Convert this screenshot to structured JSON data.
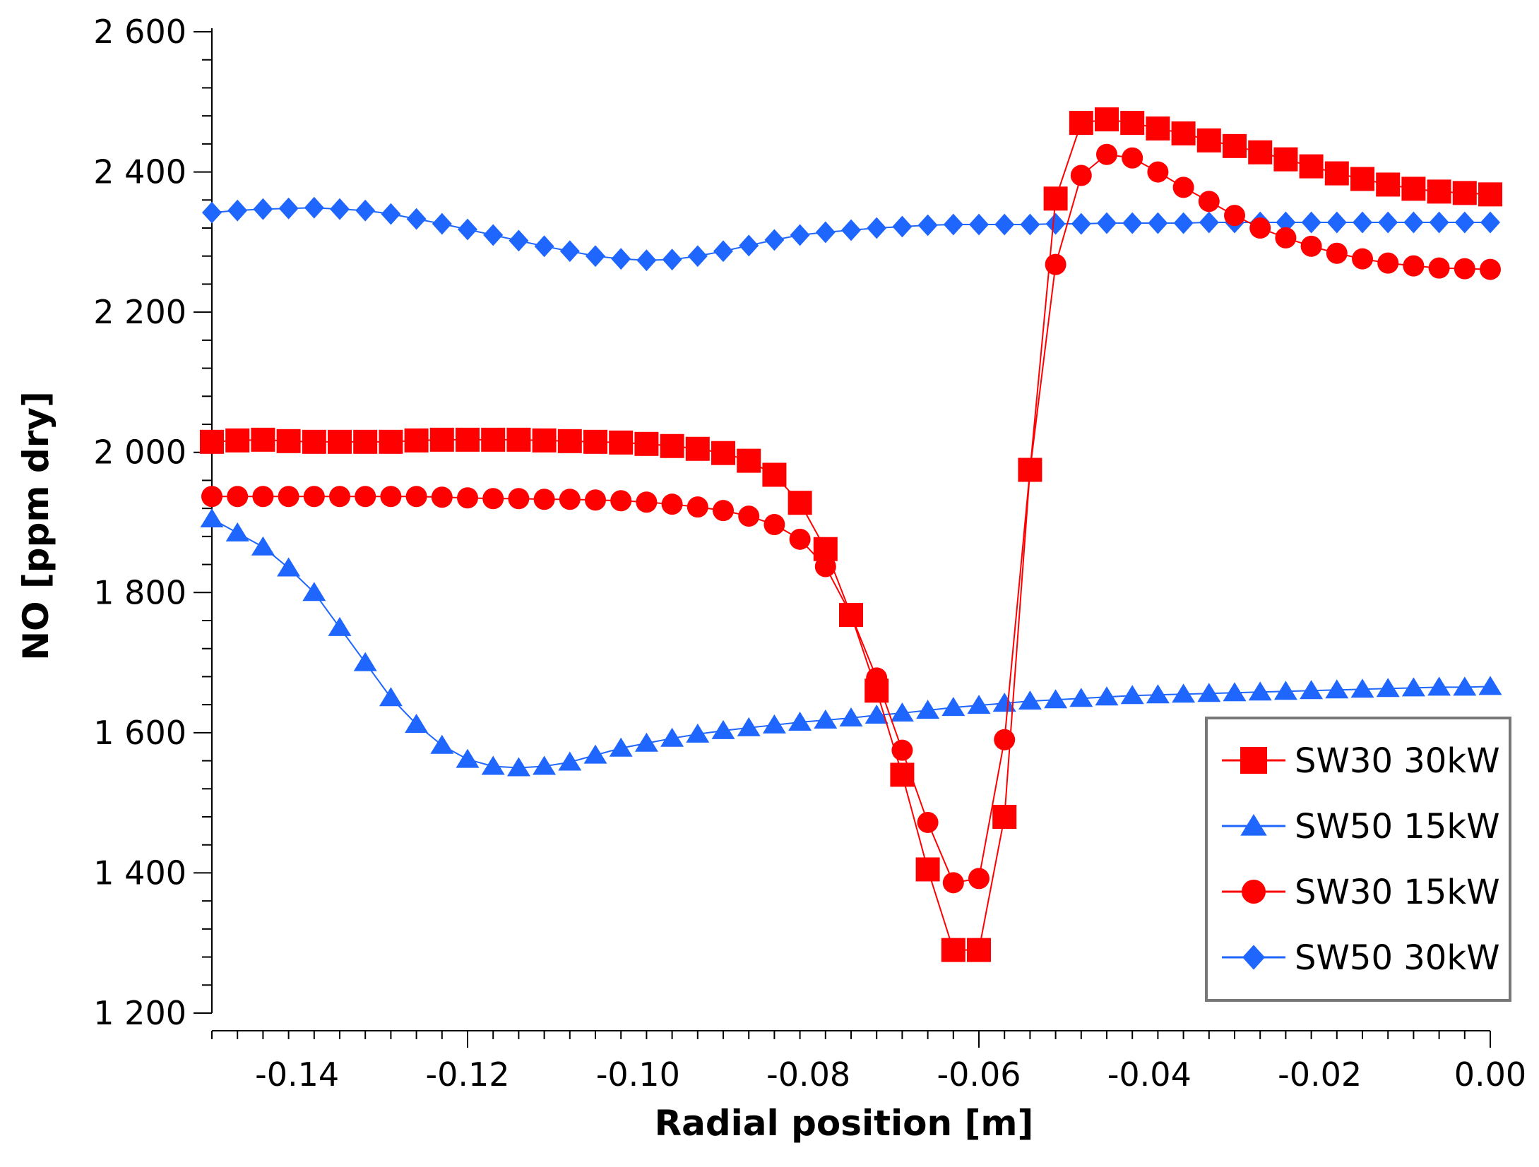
{
  "chart_data": {
    "type": "line",
    "title": "",
    "xlabel": "Radial position [m]",
    "ylabel": "NO [ppm dry]",
    "xlim": [
      -0.15,
      0.0
    ],
    "ylim": [
      1200,
      2600
    ],
    "xticks": [
      -0.14,
      -0.12,
      -0.1,
      -0.08,
      -0.06,
      -0.04,
      -0.02,
      0.0
    ],
    "xtick_labels": [
      "-0.14",
      "-0.12",
      "-0.10",
      "-0.08",
      "-0.06",
      "-0.04",
      "-0.02",
      "0.00"
    ],
    "yticks": [
      1200,
      1400,
      1600,
      1800,
      2000,
      2200,
      2400,
      2600
    ],
    "ytick_labels": [
      "1 200",
      "1 400",
      "1 600",
      "1 800",
      "2 000",
      "2 200",
      "2 400",
      "2 600"
    ],
    "grid": false,
    "legend_position": "bottom-right",
    "x": [
      -0.15,
      -0.147,
      -0.144,
      -0.141,
      -0.138,
      -0.135,
      -0.132,
      -0.129,
      -0.126,
      -0.123,
      -0.12,
      -0.117,
      -0.114,
      -0.111,
      -0.108,
      -0.105,
      -0.102,
      -0.099,
      -0.096,
      -0.093,
      -0.09,
      -0.087,
      -0.084,
      -0.081,
      -0.078,
      -0.075,
      -0.072,
      -0.069,
      -0.066,
      -0.063,
      -0.06,
      -0.057,
      -0.054,
      -0.051,
      -0.048,
      -0.045,
      -0.042,
      -0.039,
      -0.036,
      -0.033,
      -0.03,
      -0.027,
      -0.024,
      -0.021,
      -0.018,
      -0.015,
      -0.012,
      -0.009,
      -0.006,
      -0.003,
      0.0
    ],
    "series": [
      {
        "name": "SW30 30kW",
        "color": "#ff0000",
        "marker": "square",
        "values": [
          2015,
          2017,
          2018,
          2016,
          2015,
          2015,
          2015,
          2015,
          2017,
          2018,
          2018,
          2018,
          2018,
          2017,
          2016,
          2015,
          2014,
          2012,
          2009,
          2005,
          1999,
          1988,
          1968,
          1928,
          1862,
          1768,
          1660,
          1540,
          1405,
          1290,
          1290,
          1480,
          1975,
          2362,
          2470,
          2475,
          2470,
          2462,
          2455,
          2445,
          2437,
          2428,
          2418,
          2408,
          2398,
          2390,
          2382,
          2376,
          2372,
          2370,
          2368
        ]
      },
      {
        "name": "SW50 15kW",
        "color": "#1f66ff",
        "marker": "triangle",
        "values": [
          1905,
          1885,
          1865,
          1835,
          1800,
          1750,
          1700,
          1650,
          1612,
          1582,
          1562,
          1552,
          1550,
          1552,
          1558,
          1568,
          1578,
          1585,
          1592,
          1598,
          1603,
          1607,
          1611,
          1615,
          1618,
          1621,
          1625,
          1628,
          1632,
          1636,
          1639,
          1642,
          1645,
          1647,
          1649,
          1651,
          1653,
          1654,
          1655,
          1656,
          1657,
          1658,
          1659,
          1660,
          1661,
          1662,
          1663,
          1664,
          1665,
          1665,
          1666
        ]
      },
      {
        "name": "SW30 15kW",
        "color": "#ff0000",
        "marker": "circle",
        "values": [
          1937,
          1937,
          1937,
          1937,
          1937,
          1937,
          1937,
          1937,
          1937,
          1936,
          1935,
          1934,
          1934,
          1933,
          1933,
          1932,
          1931,
          1929,
          1926,
          1922,
          1917,
          1909,
          1897,
          1876,
          1837,
          1768,
          1678,
          1575,
          1472,
          1386,
          1392,
          1590,
          1975,
          2268,
          2395,
          2425,
          2420,
          2400,
          2378,
          2358,
          2338,
          2320,
          2306,
          2294,
          2284,
          2276,
          2270,
          2266,
          2263,
          2262,
          2261
        ]
      },
      {
        "name": "SW50 30kW",
        "color": "#1f66ff",
        "marker": "diamond",
        "values": [
          2342,
          2345,
          2347,
          2348,
          2349,
          2347,
          2345,
          2340,
          2333,
          2326,
          2318,
          2310,
          2302,
          2294,
          2287,
          2280,
          2276,
          2274,
          2275,
          2280,
          2287,
          2295,
          2303,
          2310,
          2314,
          2317,
          2320,
          2322,
          2324,
          2325,
          2325,
          2325,
          2325,
          2326,
          2326,
          2327,
          2327,
          2327,
          2327,
          2328,
          2328,
          2328,
          2328,
          2328,
          2328,
          2328,
          2328,
          2328,
          2328,
          2328,
          2328
        ]
      }
    ]
  }
}
